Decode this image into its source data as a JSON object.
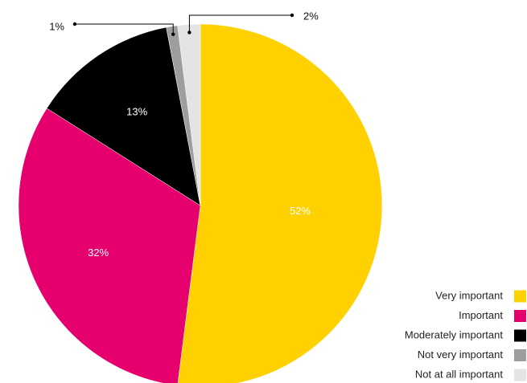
{
  "chart_data": {
    "type": "pie",
    "title": "",
    "slices": [
      {
        "label": "Very important",
        "value": 52,
        "display": "52%",
        "color": "#FFD100"
      },
      {
        "label": "Important",
        "value": 32,
        "display": "32%",
        "color": "#E5006D"
      },
      {
        "label": "Moderately important",
        "value": 13,
        "display": "13%",
        "color": "#000000"
      },
      {
        "label": "Not very important",
        "value": 1,
        "display": "1%",
        "color": "#9E9E9E"
      },
      {
        "label": "Not at all important",
        "value": 2,
        "display": "2%",
        "color": "#E4E4E4"
      }
    ],
    "start_angle_deg": 0,
    "direction": "clockwise",
    "legend_position": "bottom-right",
    "legend_marker": "square"
  }
}
